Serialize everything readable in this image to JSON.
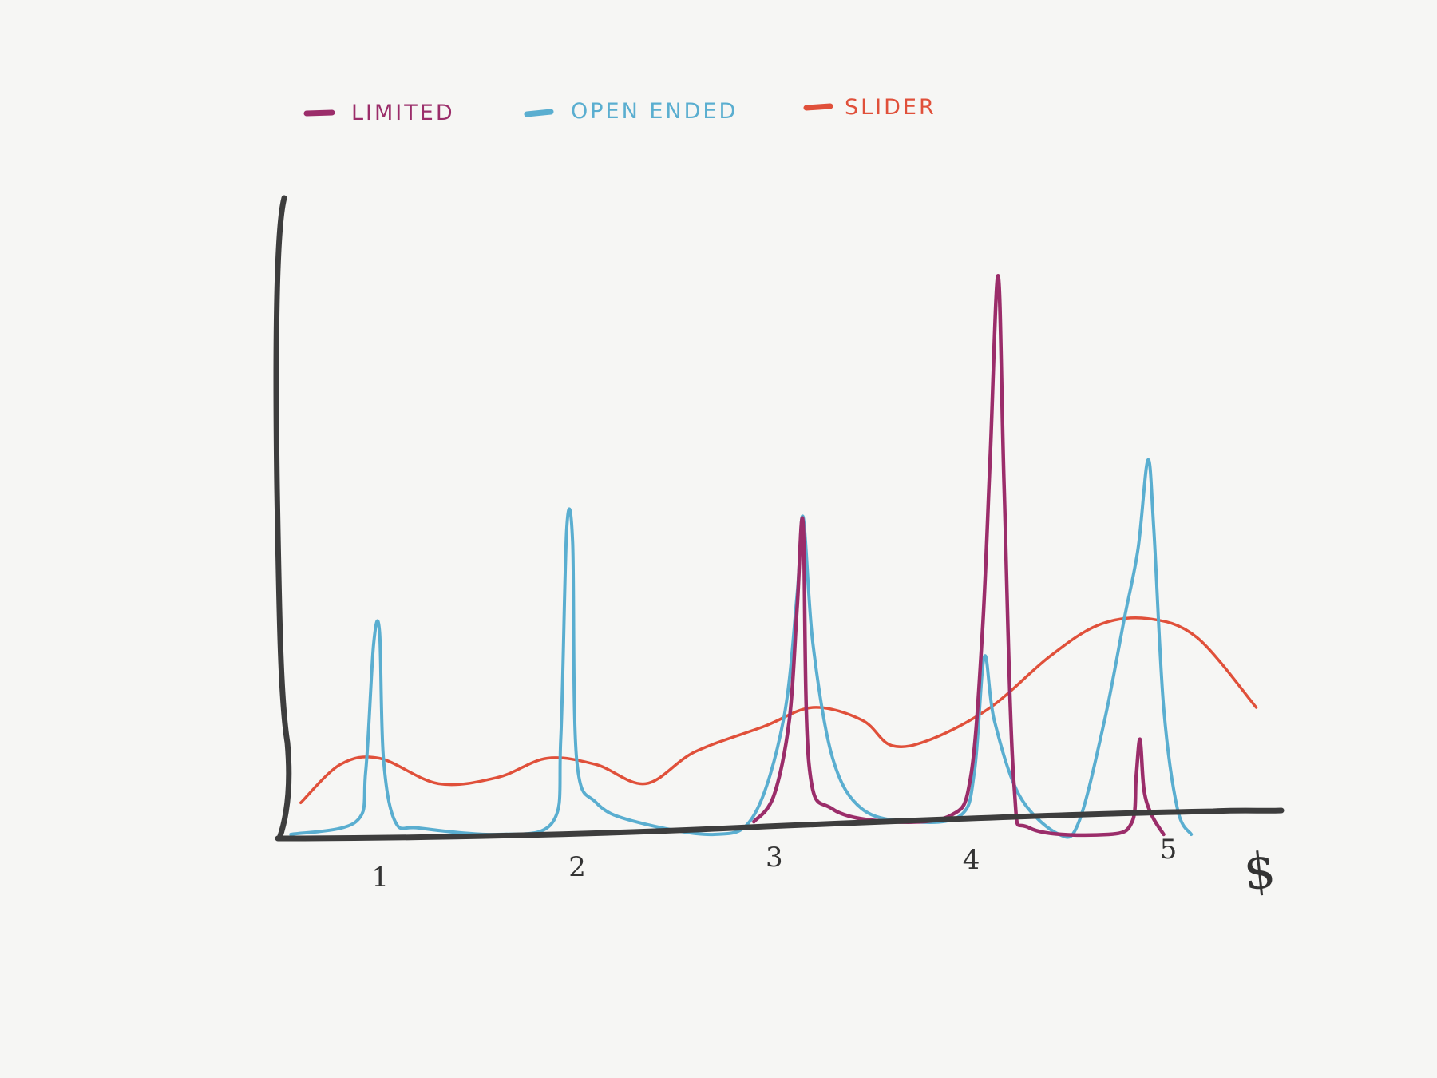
{
  "chart_data": {
    "type": "line",
    "title": "",
    "xlabel": "$",
    "ylabel": "",
    "categories": [
      "1",
      "2",
      "3",
      "4",
      "5"
    ],
    "xlim": [
      0.5,
      5.8
    ],
    "ylim": [
      0,
      1.0
    ],
    "grid": false,
    "legend_position": "top-left",
    "series": [
      {
        "name": "Limited",
        "color": "#9b2d6a",
        "points": [
          [
            2.9,
            0.02
          ],
          [
            3.0,
            0.06
          ],
          [
            3.08,
            0.18
          ],
          [
            3.12,
            0.36
          ],
          [
            3.15,
            0.49
          ],
          [
            3.18,
            0.11
          ],
          [
            3.3,
            0.04
          ],
          [
            3.6,
            0.02
          ],
          [
            3.9,
            0.03
          ],
          [
            4.0,
            0.09
          ],
          [
            4.06,
            0.32
          ],
          [
            4.1,
            0.6
          ],
          [
            4.14,
            0.88
          ],
          [
            4.17,
            0.55
          ],
          [
            4.22,
            0.08
          ],
          [
            4.3,
            0.01
          ],
          [
            4.7,
            0.0
          ],
          [
            4.82,
            0.02
          ],
          [
            4.84,
            0.09
          ],
          [
            4.86,
            0.15
          ],
          [
            4.88,
            0.07
          ],
          [
            4.92,
            0.03
          ],
          [
            4.98,
            0.0
          ]
        ]
      },
      {
        "name": "Open ended",
        "color": "#5aaed0",
        "points": [
          [
            0.55,
            0.0
          ],
          [
            0.88,
            0.02
          ],
          [
            0.93,
            0.1
          ],
          [
            0.97,
            0.3
          ],
          [
            1.0,
            0.32
          ],
          [
            1.02,
            0.12
          ],
          [
            1.08,
            0.02
          ],
          [
            1.2,
            0.01
          ],
          [
            1.6,
            0.0
          ],
          [
            1.88,
            0.02
          ],
          [
            1.92,
            0.15
          ],
          [
            1.95,
            0.48
          ],
          [
            1.98,
            0.46
          ],
          [
            2.0,
            0.12
          ],
          [
            2.1,
            0.05
          ],
          [
            2.3,
            0.02
          ],
          [
            2.7,
            0.0
          ],
          [
            2.9,
            0.03
          ],
          [
            3.05,
            0.18
          ],
          [
            3.12,
            0.38
          ],
          [
            3.15,
            0.5
          ],
          [
            3.2,
            0.3
          ],
          [
            3.3,
            0.12
          ],
          [
            3.45,
            0.04
          ],
          [
            3.7,
            0.02
          ],
          [
            3.95,
            0.03
          ],
          [
            4.02,
            0.1
          ],
          [
            4.07,
            0.28
          ],
          [
            4.12,
            0.18
          ],
          [
            4.25,
            0.06
          ],
          [
            4.45,
            0.0
          ],
          [
            4.55,
            0.02
          ],
          [
            4.68,
            0.18
          ],
          [
            4.78,
            0.34
          ],
          [
            4.85,
            0.45
          ],
          [
            4.9,
            0.59
          ],
          [
            4.93,
            0.48
          ],
          [
            4.98,
            0.2
          ],
          [
            5.05,
            0.04
          ],
          [
            5.12,
            0.0
          ]
        ]
      },
      {
        "name": "Slider",
        "color": "#e0503a",
        "points": [
          [
            0.6,
            0.05
          ],
          [
            0.8,
            0.11
          ],
          [
            1.0,
            0.12
          ],
          [
            1.3,
            0.08
          ],
          [
            1.6,
            0.09
          ],
          [
            1.85,
            0.12
          ],
          [
            2.1,
            0.11
          ],
          [
            2.35,
            0.08
          ],
          [
            2.6,
            0.13
          ],
          [
            2.95,
            0.17
          ],
          [
            3.2,
            0.2
          ],
          [
            3.45,
            0.18
          ],
          [
            3.6,
            0.14
          ],
          [
            3.8,
            0.15
          ],
          [
            4.1,
            0.2
          ],
          [
            4.4,
            0.28
          ],
          [
            4.65,
            0.33
          ],
          [
            4.9,
            0.34
          ],
          [
            5.15,
            0.31
          ],
          [
            5.45,
            0.2
          ]
        ]
      }
    ]
  },
  "legend": [
    {
      "label": "LIMITED",
      "color": "#9b2d6a"
    },
    {
      "label": "OPEN ENDED",
      "color": "#5aaed0"
    },
    {
      "label": "SLIDER",
      "color": "#e0503a"
    }
  ],
  "axis_color": "#3d3d3d",
  "background": "#f6f6f4"
}
